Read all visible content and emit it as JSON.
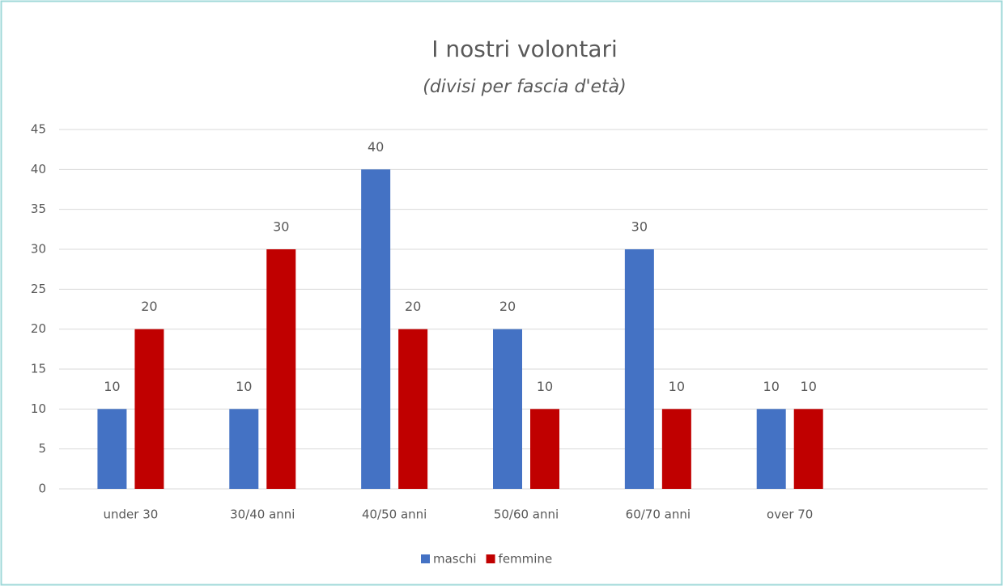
{
  "chart_data": {
    "type": "bar",
    "title": "I nostri volontari",
    "subtitle": "(divisi per fascia d'età)",
    "categories": [
      "under 30",
      "30/40 anni",
      "40/50 anni",
      "50/60 anni",
      "60/70 anni",
      "over 70",
      null
    ],
    "series": [
      {
        "name": "maschi",
        "color": "#4472c4",
        "values": [
          10,
          10,
          40,
          20,
          30,
          10,
          null
        ]
      },
      {
        "name": "femmine",
        "color": "#c00000",
        "values": [
          20,
          30,
          20,
          10,
          10,
          10,
          null
        ]
      }
    ],
    "ylim": [
      0,
      45
    ],
    "yticks": [
      0,
      5,
      10,
      15,
      20,
      25,
      30,
      35,
      40,
      45
    ],
    "grid": true,
    "legend": "bottom"
  }
}
